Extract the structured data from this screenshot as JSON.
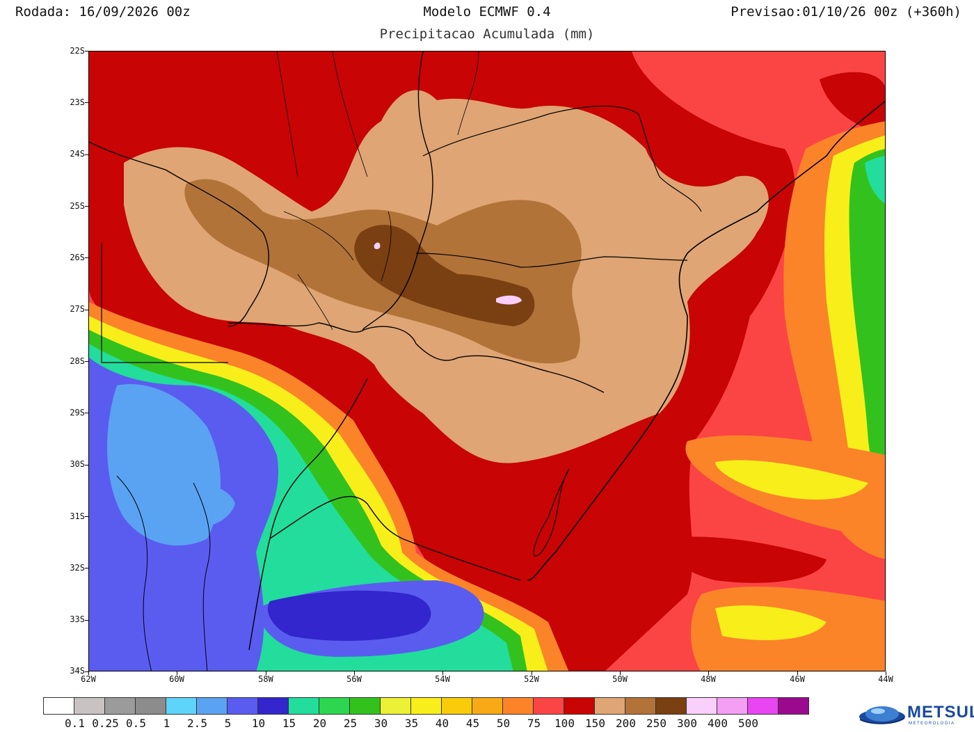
{
  "header": {
    "run": "Rodada: 16/09/2026 00z",
    "model": "Modelo ECMWF 0.4",
    "variable": "Precipitacao Acumulada (mm)",
    "forecast": "Previsao:01/10/26 00z (+360h)"
  },
  "map": {
    "lon_range": [
      -62,
      -44
    ],
    "lat_range": [
      -34,
      -22
    ],
    "lat_labels": [
      "22S",
      "23S",
      "24S",
      "25S",
      "26S",
      "27S",
      "28S",
      "29S",
      "30S",
      "31S",
      "32S",
      "33S",
      "34S"
    ],
    "lon_labels": [
      "62W",
      "60W",
      "58W",
      "56W",
      "54W",
      "52W",
      "50W",
      "48W",
      "46W",
      "44W"
    ]
  },
  "legend": {
    "colors": [
      "#ffffff",
      "#c9c2c2",
      "#9b9b9b",
      "#8c8c8c",
      "#5fd4f9",
      "#5aa3f2",
      "#5a5cf0",
      "#3326cc",
      "#22dd9b",
      "#2cd64f",
      "#33c21d",
      "#ecf036",
      "#f8ef1a",
      "#f8cc0a",
      "#f7a916",
      "#fb8429",
      "#fb4545",
      "#c80404",
      "#dfa574",
      "#b27339",
      "#7a4011",
      "#fbcffb",
      "#f49ef4",
      "#e846f0",
      "#9b0a8e"
    ],
    "labels": [
      "0.1",
      "0.25",
      "0.5",
      "1",
      "2.5",
      "5",
      "10",
      "15",
      "20",
      "25",
      "30",
      "35",
      "40",
      "45",
      "50",
      "75",
      "100",
      "150",
      "200",
      "250",
      "300",
      "400",
      "500"
    ]
  },
  "logo": {
    "name": "METSUL",
    "tagline": "METEOROLOGIA"
  }
}
